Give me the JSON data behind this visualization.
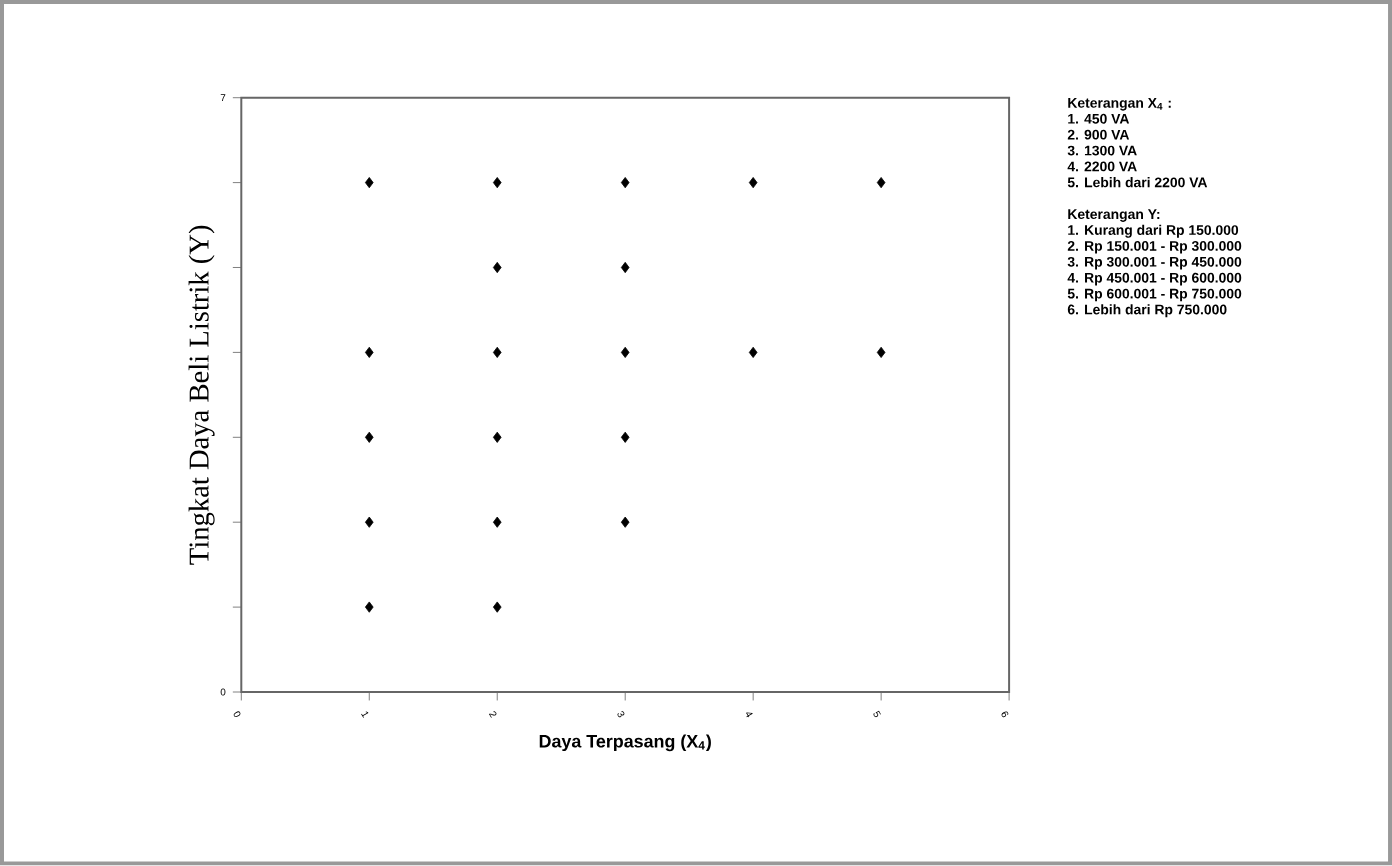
{
  "chart_data": {
    "type": "scatter",
    "xlabel": "Daya Terpasang (X$_{4}$)",
    "ylabel": "Tingkat Daya Beli Listrik (Y)",
    "x": [
      1,
      1,
      1,
      1,
      1,
      2,
      2,
      2,
      2,
      2,
      2,
      3,
      3,
      3,
      3,
      3,
      4,
      4,
      5,
      5
    ],
    "values": [
      1,
      2,
      3,
      4,
      6,
      1,
      2,
      3,
      4,
      5,
      6,
      2,
      3,
      4,
      5,
      6,
      4,
      6,
      4,
      6
    ],
    "color": "#000000",
    "marker": "diamond",
    "grid": false,
    "xlim": [
      0,
      6
    ],
    "xticks": [
      0,
      1,
      2,
      3,
      4,
      5,
      6
    ],
    "ylim": [
      0,
      7
    ],
    "yticks": [
      0,
      {
        "value": 1,
        "label": null
      },
      {
        "value": 2,
        "label": null
      },
      {
        "value": 3,
        "label": null
      },
      {
        "value": 4,
        "label": null
      },
      {
        "value": 5,
        "label": null
      },
      {
        "value": 6,
        "label": null
      },
      7
    ],
    "annotations": [
      "**Keterangan X$_{4}$ :**",
      "**1. 450 VA**",
      "**2. 900 VA**",
      "**3. 1300 VA**",
      "**4. 2200 VA**",
      "**5. Lebih dari 2200 VA**",
      "**Keterangan Y:**",
      "**1. Kurang dari Rp 150.000**",
      "**2. Rp 150.001 - Rp 300.000**",
      "**3. Rp 300.001 - Rp 450.000**",
      "**4. Rp 450.001 - Rp 600.000**",
      "**5. Rp 600.001 - Rp 750.000**",
      "**6. Lebih dari Rp 750.000**"
    ]
  }
}
